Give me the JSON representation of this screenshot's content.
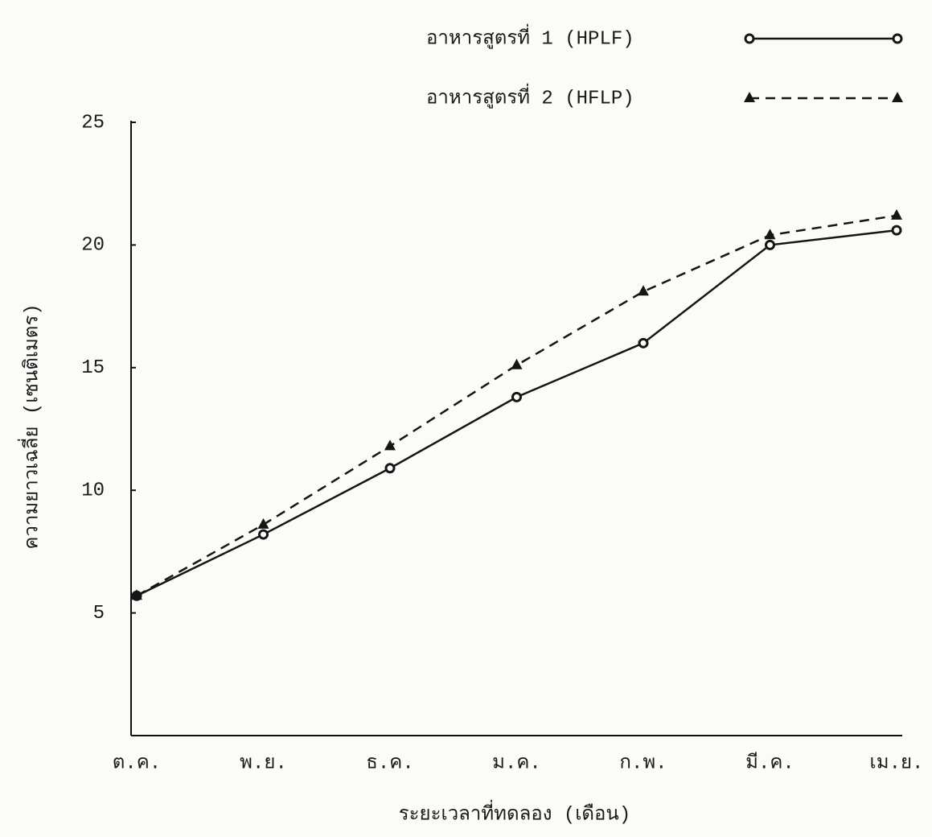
{
  "chart_data": {
    "type": "line",
    "xlabel": "ระยะเวลาที่ทดลอง (เดือน)",
    "ylabel": "ความยาวเฉลี่ย (เซนติเมตร)",
    "categories": [
      "ต.ค.",
      "พ.ย.",
      "ธ.ค.",
      "ม.ค.",
      "ก.พ.",
      "มี.ค.",
      "เม.ย."
    ],
    "series": [
      {
        "name": "อาหารสูตรที่ 1 (HPLF)",
        "color": "#151515",
        "marker": "circle",
        "linestyle": "solid",
        "values": [
          5.7,
          8.2,
          10.9,
          13.8,
          16.0,
          20.0,
          20.6
        ]
      },
      {
        "name": "อาหารสูตรที่ 2 (HFLP)",
        "color": "#151515",
        "marker": "triangle",
        "linestyle": "dashed",
        "values": [
          5.7,
          8.6,
          11.8,
          15.1,
          18.1,
          20.4,
          21.2
        ]
      }
    ],
    "ylim": [
      0,
      25
    ],
    "yticks": [
      5,
      10,
      15,
      20,
      25
    ],
    "grid": false,
    "legend": "top-right"
  }
}
